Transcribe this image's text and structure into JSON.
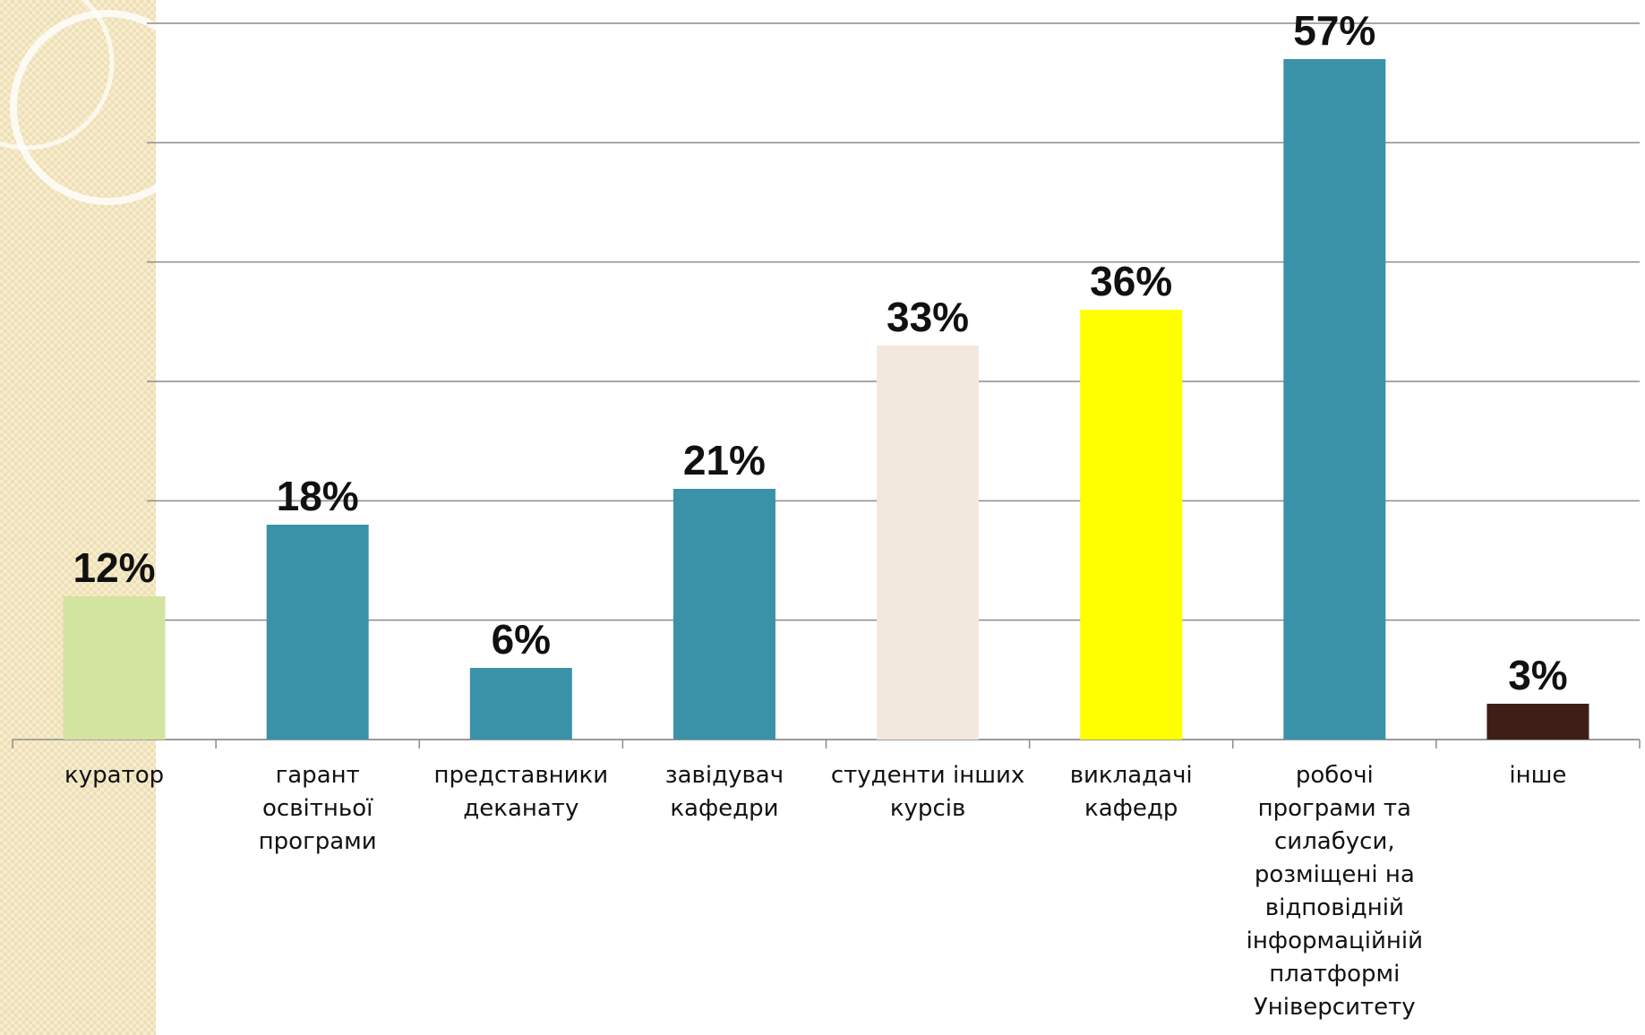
{
  "chart_data": {
    "type": "bar",
    "categories": [
      "куратор",
      "гарант освітньої програми",
      "представники деканату",
      "завідувач кафедри",
      "студенти інших курсів",
      "викладачі кафедр",
      "робочі програми та силабуси, розміщені на відповідній інформаційній платформі Університету",
      "інше"
    ],
    "values": [
      12,
      18,
      6,
      21,
      33,
      36,
      57,
      3
    ],
    "value_labels": [
      "12%",
      "18%",
      "6%",
      "21%",
      "33%",
      "36%",
      "57%",
      "3%"
    ],
    "colors": [
      "#d3e3a0",
      "#3a92a8",
      "#3a92a8",
      "#3a92a8",
      "#f2e9dc",
      "#ffff00",
      "#3a92a8",
      "#3e1f17"
    ],
    "ylim": [
      0,
      60
    ],
    "yticks": [
      0,
      10,
      20,
      30,
      40,
      50,
      60
    ],
    "grid": true
  }
}
